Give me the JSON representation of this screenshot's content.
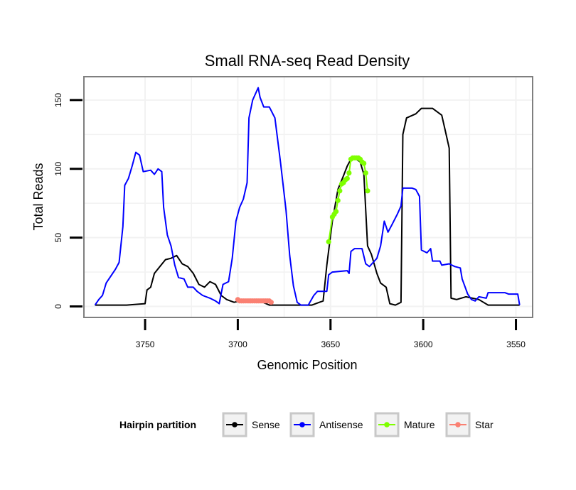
{
  "chart_data": {
    "type": "line",
    "title": "Small RNA-seq Read Density",
    "xlabel": "Genomic Position",
    "ylabel": "Total Reads",
    "xlim": [
      3783,
      3541
    ],
    "ylim": [
      -8,
      167
    ],
    "x_reversed": true,
    "xticks": [
      3750,
      3700,
      3650,
      3600,
      3550
    ],
    "xtick_labels": [
      "3750",
      "3700",
      "3650",
      "3600",
      "3550"
    ],
    "yticks": [
      0,
      50,
      100,
      150
    ],
    "ytick_labels": [
      "0",
      "50",
      "100",
      "150"
    ],
    "grid": true,
    "legend": {
      "title": "Hairpin partition",
      "position": "bottom",
      "entries": [
        {
          "label": "Sense",
          "color": "#000000"
        },
        {
          "label": "Antisense",
          "color": "#0000ff"
        },
        {
          "label": "Mature",
          "color": "#7fff00"
        },
        {
          "label": "Star",
          "color": "#fa8072"
        }
      ]
    },
    "series": [
      {
        "name": "Sense",
        "color": "#000000",
        "marker": "none",
        "points": [
          [
            3777,
            1
          ],
          [
            3760,
            1
          ],
          [
            3750,
            2
          ],
          [
            3749,
            12
          ],
          [
            3747,
            14
          ],
          [
            3745,
            24
          ],
          [
            3742,
            29
          ],
          [
            3739,
            34
          ],
          [
            3736,
            35
          ],
          [
            3733,
            37
          ],
          [
            3730,
            31
          ],
          [
            3727,
            29
          ],
          [
            3724,
            24
          ],
          [
            3721,
            16
          ],
          [
            3718,
            14
          ],
          [
            3715,
            18
          ],
          [
            3712,
            16
          ],
          [
            3709,
            8
          ],
          [
            3706,
            5
          ],
          [
            3702,
            3
          ],
          [
            3699,
            4
          ],
          [
            3688,
            4
          ],
          [
            3683,
            1
          ],
          [
            3660,
            1
          ],
          [
            3656,
            3
          ],
          [
            3654,
            4
          ],
          [
            3652,
            30
          ],
          [
            3649,
            62
          ],
          [
            3646,
            85
          ],
          [
            3643,
            95
          ],
          [
            3641,
            102
          ],
          [
            3639,
            107
          ],
          [
            3636,
            107
          ],
          [
            3634,
            105
          ],
          [
            3632,
            96
          ],
          [
            3630,
            44
          ],
          [
            3628,
            38
          ],
          [
            3625,
            24
          ],
          [
            3623,
            17
          ],
          [
            3620,
            14
          ],
          [
            3618,
            2
          ],
          [
            3615,
            1
          ],
          [
            3612,
            3
          ],
          [
            3611,
            125
          ],
          [
            3609,
            137
          ],
          [
            3604,
            140
          ],
          [
            3601,
            144
          ],
          [
            3595,
            144
          ],
          [
            3590,
            139
          ],
          [
            3588,
            127
          ],
          [
            3586,
            115
          ],
          [
            3585,
            6
          ],
          [
            3582,
            5
          ],
          [
            3577,
            7
          ],
          [
            3570,
            5
          ],
          [
            3565,
            1
          ],
          [
            3548,
            1
          ]
        ]
      },
      {
        "name": "Antisense",
        "color": "#0000ff",
        "marker": "none",
        "points": [
          [
            3777,
            1
          ],
          [
            3775,
            5
          ],
          [
            3773,
            8
          ],
          [
            3771,
            17
          ],
          [
            3768,
            23
          ],
          [
            3766,
            27
          ],
          [
            3764,
            32
          ],
          [
            3762,
            58
          ],
          [
            3761,
            88
          ],
          [
            3759,
            93
          ],
          [
            3757,
            102
          ],
          [
            3755,
            112
          ],
          [
            3753,
            110
          ],
          [
            3751,
            98
          ],
          [
            3747,
            99
          ],
          [
            3745,
            96
          ],
          [
            3743,
            100
          ],
          [
            3741,
            98
          ],
          [
            3740,
            72
          ],
          [
            3738,
            52
          ],
          [
            3736,
            44
          ],
          [
            3734,
            30
          ],
          [
            3732,
            21
          ],
          [
            3729,
            20
          ],
          [
            3727,
            14
          ],
          [
            3724,
            14
          ],
          [
            3722,
            11
          ],
          [
            3719,
            8
          ],
          [
            3715,
            6
          ],
          [
            3712,
            4
          ],
          [
            3710,
            2
          ],
          [
            3708,
            16
          ],
          [
            3705,
            18
          ],
          [
            3703,
            35
          ],
          [
            3701,
            62
          ],
          [
            3699,
            72
          ],
          [
            3697,
            78
          ],
          [
            3695,
            90
          ],
          [
            3694,
            137
          ],
          [
            3692,
            150
          ],
          [
            3689,
            159
          ],
          [
            3688,
            152
          ],
          [
            3686,
            145
          ],
          [
            3683,
            145
          ],
          [
            3680,
            137
          ],
          [
            3677,
            105
          ],
          [
            3674,
            70
          ],
          [
            3672,
            37
          ],
          [
            3670,
            15
          ],
          [
            3668,
            3
          ],
          [
            3666,
            1
          ],
          [
            3662,
            1
          ],
          [
            3659,
            8
          ],
          [
            3657,
            11
          ],
          [
            3652,
            11
          ],
          [
            3651,
            23
          ],
          [
            3649,
            25
          ],
          [
            3641,
            26
          ],
          [
            3640,
            24
          ],
          [
            3639,
            40
          ],
          [
            3637,
            42
          ],
          [
            3633,
            42
          ],
          [
            3631,
            31
          ],
          [
            3629,
            29
          ],
          [
            3627,
            32
          ],
          [
            3625,
            35
          ],
          [
            3623,
            44
          ],
          [
            3621,
            62
          ],
          [
            3619,
            54
          ],
          [
            3617,
            59
          ],
          [
            3614,
            67
          ],
          [
            3612,
            73
          ],
          [
            3611,
            86
          ],
          [
            3609,
            86
          ],
          [
            3606,
            86
          ],
          [
            3604,
            85
          ],
          [
            3602,
            80
          ],
          [
            3601,
            41
          ],
          [
            3598,
            39
          ],
          [
            3596,
            42
          ],
          [
            3595,
            33
          ],
          [
            3591,
            33
          ],
          [
            3590,
            30
          ],
          [
            3586,
            31
          ],
          [
            3583,
            29
          ],
          [
            3580,
            28
          ],
          [
            3579,
            20
          ],
          [
            3576,
            9
          ],
          [
            3574,
            5
          ],
          [
            3572,
            4
          ],
          [
            3570,
            7
          ],
          [
            3566,
            6
          ],
          [
            3565,
            10
          ],
          [
            3556,
            10
          ],
          [
            3554,
            9
          ],
          [
            3549,
            9
          ],
          [
            3548,
            1
          ]
        ]
      },
      {
        "name": "Mature",
        "color": "#7fff00",
        "marker": "point",
        "points": [
          [
            3651,
            47
          ],
          [
            3649,
            65
          ],
          [
            3648,
            67
          ],
          [
            3647,
            69
          ],
          [
            3646,
            77
          ],
          [
            3645,
            84
          ],
          [
            3644,
            89
          ],
          [
            3643,
            90
          ],
          [
            3642,
            92
          ],
          [
            3641,
            93
          ],
          [
            3640,
            97
          ],
          [
            3639,
            107
          ],
          [
            3638,
            108
          ],
          [
            3637,
            108
          ],
          [
            3636,
            108
          ],
          [
            3635,
            108
          ],
          [
            3634,
            107
          ],
          [
            3633,
            105
          ],
          [
            3632,
            104
          ],
          [
            3631,
            97
          ],
          [
            3630,
            84
          ]
        ]
      },
      {
        "name": "Star",
        "color": "#fa8072",
        "marker": "point",
        "points": [
          [
            3700,
            5
          ],
          [
            3699,
            4
          ],
          [
            3698,
            4
          ],
          [
            3697,
            4
          ],
          [
            3696,
            4
          ],
          [
            3695,
            4
          ],
          [
            3694,
            4
          ],
          [
            3693,
            4
          ],
          [
            3692,
            4
          ],
          [
            3691,
            4
          ],
          [
            3690,
            4
          ],
          [
            3689,
            4
          ],
          [
            3688,
            4
          ],
          [
            3687,
            4
          ],
          [
            3686,
            4
          ],
          [
            3685,
            4
          ],
          [
            3684,
            4
          ],
          [
            3683,
            4
          ],
          [
            3682,
            3
          ]
        ]
      }
    ]
  }
}
